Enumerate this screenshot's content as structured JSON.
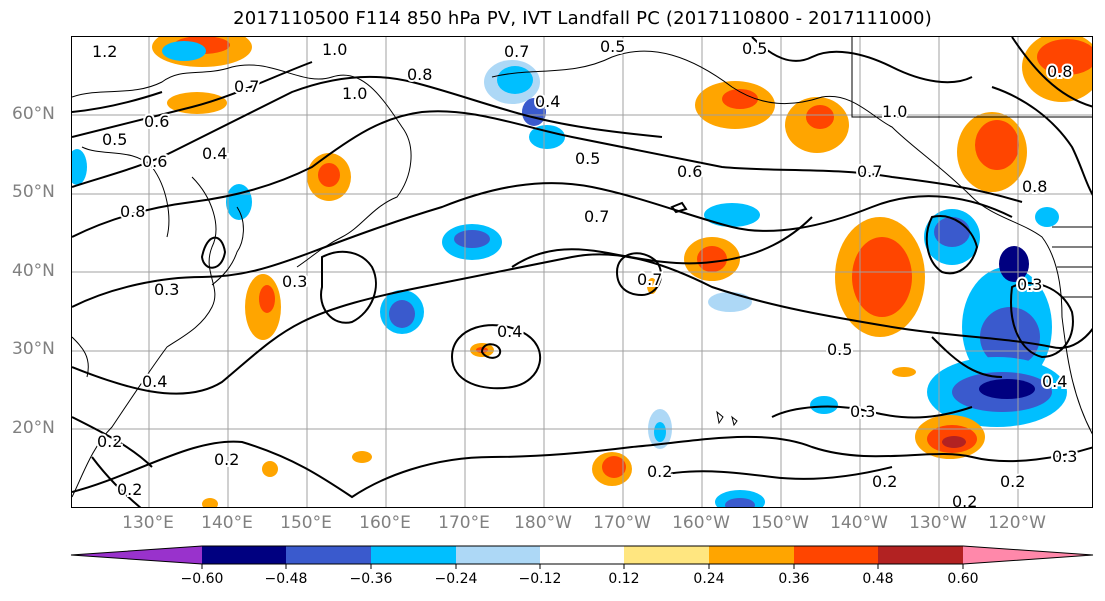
{
  "title": "2017110500 F114 850 hPa PV, IVT Landfall PC (2017110800 - 2017111000)",
  "map": {
    "lat_labels": [
      "60°N",
      "50°N",
      "40°N",
      "30°N",
      "20°N"
    ],
    "lon_labels": [
      "130°E",
      "140°E",
      "150°E",
      "160°E",
      "170°E",
      "180°W",
      "170°W",
      "160°W",
      "150°W",
      "140°W",
      "130°W",
      "120°W"
    ],
    "contour_labels": [
      "1.2",
      "0.7",
      "0.5",
      "0.5",
      "1.0",
      "0.7",
      "0.8",
      "1.0",
      "0.6",
      "0.5",
      "0.6",
      "0.8",
      "0.4",
      "0.4",
      "0.5",
      "0.6",
      "0.7",
      "1.0",
      "0.7",
      "0.8",
      "0.7",
      "0.8",
      "0.3",
      "0.3",
      "0.4",
      "0.4",
      "0.5",
      "0.3",
      "0.3",
      "0.4",
      "0.2",
      "0.2",
      "0.2",
      "0.2",
      "0.2",
      "0.2",
      "0.3",
      "0.2"
    ],
    "line_color": "#000000",
    "grid_color": "#a0a0a0"
  },
  "colorbar": {
    "ticks": [
      "−0.60",
      "−0.48",
      "−0.36",
      "−0.24",
      "−0.12",
      "0.12",
      "0.24",
      "0.36",
      "0.48",
      "0.60"
    ],
    "colors": [
      "#9932cc",
      "#000080",
      "#3a5acd",
      "#00bfff",
      "#add8f6",
      "#ffffff",
      "#ffe680",
      "#ffa500",
      "#ff4500",
      "#b22222",
      "#ff88aa"
    ]
  }
}
